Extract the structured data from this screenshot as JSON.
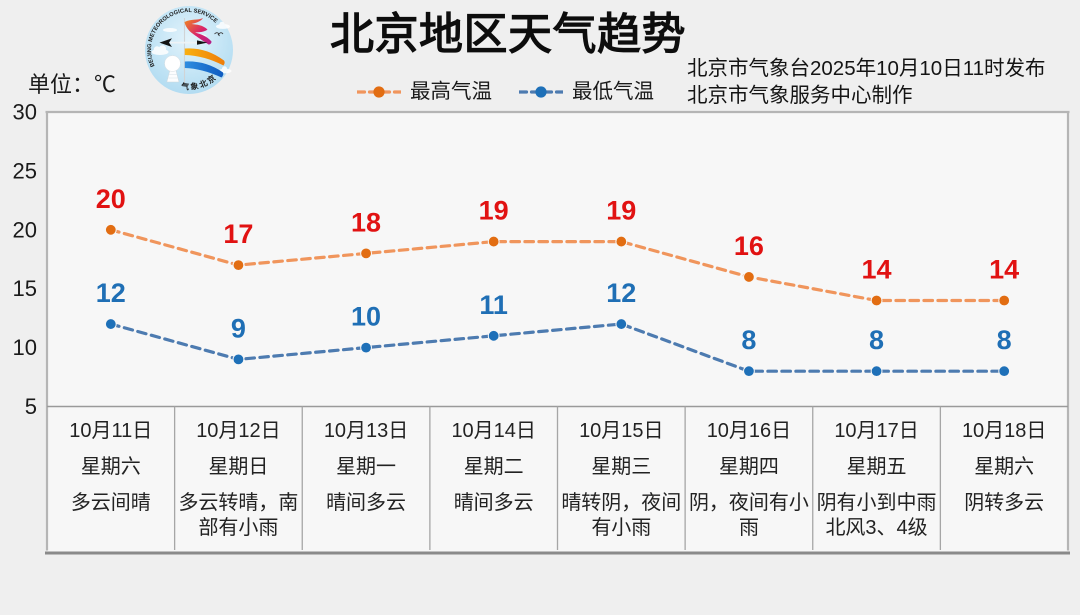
{
  "title": "北京地区天气趋势",
  "unit_label": "单位：℃",
  "source": {
    "line1": "北京市气象台2025年10月10日11时发布",
    "line2": "北京市气象服务中心制作"
  },
  "logo": {
    "ring_text": "BEIJING METEOROLOGICAL SERVICE",
    "bottom_text": "气象北京"
  },
  "chart_data": {
    "type": "line",
    "title": "北京地区天气趋势",
    "unit": "℃",
    "ylim": [
      5,
      30
    ],
    "yticks": [
      30,
      25,
      20,
      15,
      10,
      5
    ],
    "grid": false,
    "legend_position": "top-center",
    "line_style": "dashed",
    "categories": [
      {
        "date": "10月11日",
        "weekday": "星期六",
        "weather": "多云间晴"
      },
      {
        "date": "10月12日",
        "weekday": "星期日",
        "weather": "多云转晴，南部有小雨"
      },
      {
        "date": "10月13日",
        "weekday": "星期一",
        "weather": "晴间多云"
      },
      {
        "date": "10月14日",
        "weekday": "星期二",
        "weather": "晴间多云"
      },
      {
        "date": "10月15日",
        "weekday": "星期三",
        "weather": "晴转阴，夜间有小雨"
      },
      {
        "date": "10月16日",
        "weekday": "星期四",
        "weather": "阴，夜间有小雨"
      },
      {
        "date": "10月17日",
        "weekday": "星期五",
        "weather": "阴有小到中雨北风3、4级"
      },
      {
        "date": "10月18日",
        "weekday": "星期六",
        "weather": "阴转多云"
      }
    ],
    "series": [
      {
        "name": "最高气温",
        "values": [
          20,
          17,
          18,
          19,
          19,
          16,
          14,
          14
        ],
        "line_color": "#f0955c",
        "marker_color": "#e26d12",
        "label_color": "#e11212"
      },
      {
        "name": "最低气温",
        "values": [
          12,
          9,
          10,
          11,
          12,
          8,
          8,
          8
        ],
        "line_color": "#4d7bb0",
        "marker_color": "#1e70b8",
        "label_color": "#1f6fb5"
      }
    ]
  },
  "colors": {
    "page_bg": "#efefef",
    "plot_bg": "#f7f7f7",
    "frame_border": "#b5b5b5",
    "axis_line": "#9a9a9a",
    "cell_border": "#a6a6a6",
    "bottom_bar": "#8a8a8a",
    "text": "#1a1a1a"
  }
}
